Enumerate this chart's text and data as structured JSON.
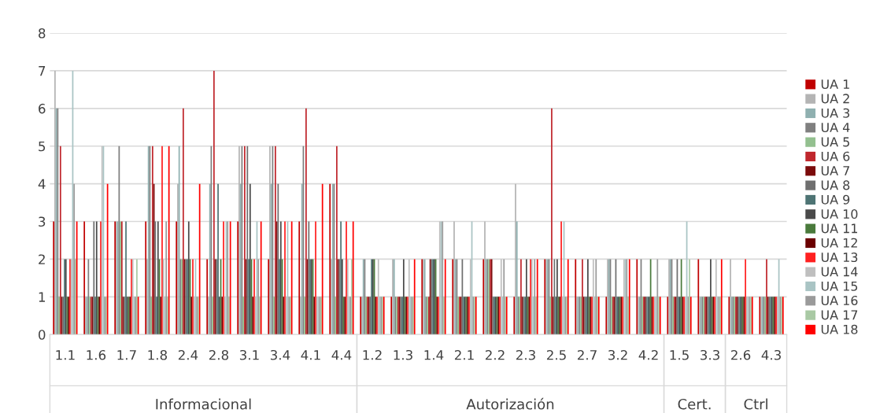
{
  "chart_data": {
    "type": "bar",
    "categories": [
      "1.1",
      "1.6",
      "1.7",
      "1.8",
      "2.4",
      "2.8",
      "3.1",
      "3.4",
      "4.1",
      "4.4",
      "1.2",
      "1.3",
      "1.4",
      "2.1",
      "2.2",
      "2.3",
      "2.5",
      "2.7",
      "3.2",
      "4.2",
      "1.5",
      "3.3",
      "2.6",
      "4.3"
    ],
    "annotations": [
      "Informacional",
      "Autorización",
      "Cert.",
      "Ctrl"
    ],
    "ylim": [
      0,
      8
    ],
    "yticks": [
      0,
      1,
      2,
      3,
      4,
      5,
      6,
      7,
      8
    ],
    "grid": "y",
    "legend": "right",
    "series": [
      {
        "name": "UA 1",
        "color": "#c00000",
        "values": [
          3,
          3,
          3,
          3,
          3,
          2,
          3,
          2,
          3,
          4,
          1,
          1,
          2,
          2,
          2,
          1,
          2,
          2,
          1,
          2,
          1,
          2,
          1,
          1
        ]
      },
      {
        "name": "UA 2",
        "color": "#b4b4b4",
        "values": [
          7,
          1,
          3,
          2,
          4,
          1,
          5,
          5,
          1,
          2,
          1,
          2,
          2,
          3,
          3,
          4,
          2,
          1,
          2,
          1,
          2,
          1,
          2,
          1
        ]
      },
      {
        "name": "UA 3",
        "color": "#8fb0b0",
        "values": [
          6,
          1,
          3,
          5,
          5,
          4,
          4,
          4,
          4,
          4,
          2,
          2,
          2,
          2,
          2,
          3,
          2,
          1,
          2,
          1,
          2,
          1,
          1,
          1
        ]
      },
      {
        "name": "UA 4",
        "color": "#7f7f7f",
        "values": [
          6,
          2,
          5,
          5,
          2,
          5,
          5,
          5,
          5,
          4,
          2,
          1,
          1,
          2,
          2,
          1,
          2,
          1,
          2,
          2,
          2,
          1,
          1,
          1
        ]
      },
      {
        "name": "UA 5",
        "color": "#93c08f",
        "values": [
          1,
          1,
          3,
          1,
          2,
          1,
          1,
          1,
          1,
          1,
          1,
          1,
          1,
          1,
          2,
          1,
          1,
          1,
          1,
          1,
          1,
          1,
          1,
          1
        ]
      },
      {
        "name": "UA 6",
        "color": "#c0272d",
        "values": [
          5,
          1,
          3,
          5,
          6,
          7,
          5,
          5,
          6,
          5,
          1,
          1,
          1,
          1,
          2,
          2,
          6,
          2,
          1,
          1,
          1,
          1,
          1,
          2
        ]
      },
      {
        "name": "UA 7",
        "color": "#7b0b0b",
        "values": [
          1,
          1,
          1,
          4,
          2,
          2,
          2,
          3,
          2,
          2,
          1,
          1,
          2,
          1,
          2,
          1,
          1,
          1,
          1,
          1,
          1,
          1,
          1,
          1
        ]
      },
      {
        "name": "UA 8",
        "color": "#6f6f6f",
        "values": [
          1,
          3,
          1,
          3,
          2,
          2,
          5,
          4,
          3,
          2,
          1,
          1,
          2,
          2,
          1,
          1,
          2,
          1,
          2,
          1,
          2,
          1,
          1,
          1
        ]
      },
      {
        "name": "UA 9",
        "color": "#4e7474",
        "values": [
          2,
          1,
          3,
          1,
          2,
          4,
          2,
          2,
          2,
          3,
          2,
          1,
          2,
          1,
          1,
          1,
          1,
          1,
          1,
          1,
          1,
          1,
          1,
          1
        ]
      },
      {
        "name": "UA 10",
        "color": "#4a4a4a",
        "values": [
          2,
          3,
          1,
          3,
          3,
          1,
          4,
          3,
          2,
          2,
          2,
          2,
          2,
          1,
          1,
          2,
          2,
          2,
          1,
          1,
          1,
          2,
          1,
          1
        ]
      },
      {
        "name": "UA 11",
        "color": "#4a7a3c",
        "values": [
          1,
          1,
          1,
          2,
          2,
          2,
          2,
          2,
          2,
          1,
          2,
          1,
          2,
          1,
          1,
          1,
          1,
          1,
          1,
          2,
          2,
          1,
          1,
          1
        ]
      },
      {
        "name": "UA 12",
        "color": "#6b0000",
        "values": [
          1,
          1,
          1,
          1,
          1,
          1,
          1,
          1,
          1,
          1,
          1,
          1,
          1,
          1,
          1,
          1,
          1,
          1,
          1,
          1,
          1,
          1,
          1,
          1
        ]
      },
      {
        "name": "UA 13",
        "color": "#ff2020",
        "values": [
          2,
          3,
          2,
          5,
          2,
          3,
          2,
          3,
          3,
          3,
          1,
          1,
          1,
          1,
          1,
          2,
          3,
          1,
          1,
          1,
          1,
          1,
          2,
          1
        ]
      },
      {
        "name": "UA 14",
        "color": "#bfbfbf",
        "values": [
          2,
          5,
          2,
          2,
          1,
          1,
          1,
          1,
          1,
          2,
          2,
          2,
          3,
          2,
          2,
          2,
          1,
          2,
          2,
          1,
          1,
          2,
          1,
          1
        ]
      },
      {
        "name": "UA 15",
        "color": "#a9c4c4",
        "values": [
          7,
          5,
          1,
          1,
          2,
          3,
          3,
          3,
          1,
          1,
          1,
          1,
          3,
          3,
          1,
          1,
          3,
          1,
          2,
          1,
          3,
          1,
          1,
          2
        ]
      },
      {
        "name": "UA 16",
        "color": "#9a9a9a",
        "values": [
          4,
          1,
          1,
          3,
          1,
          3,
          2,
          1,
          1,
          1,
          1,
          1,
          3,
          1,
          2,
          2,
          1,
          2,
          2,
          2,
          1,
          1,
          1,
          1
        ]
      },
      {
        "name": "UA 17",
        "color": "#a9c9a4",
        "values": [
          2,
          1,
          2,
          1,
          1,
          1,
          1,
          1,
          1,
          2,
          1,
          1,
          1,
          1,
          1,
          1,
          1,
          1,
          1,
          1,
          2,
          1,
          1,
          1
        ]
      },
      {
        "name": "UA 18",
        "color": "#ff0000",
        "values": [
          3,
          4,
          1,
          5,
          4,
          3,
          3,
          3,
          4,
          3,
          1,
          2,
          2,
          1,
          1,
          2,
          2,
          1,
          2,
          1,
          1,
          2,
          1,
          1
        ]
      }
    ]
  }
}
